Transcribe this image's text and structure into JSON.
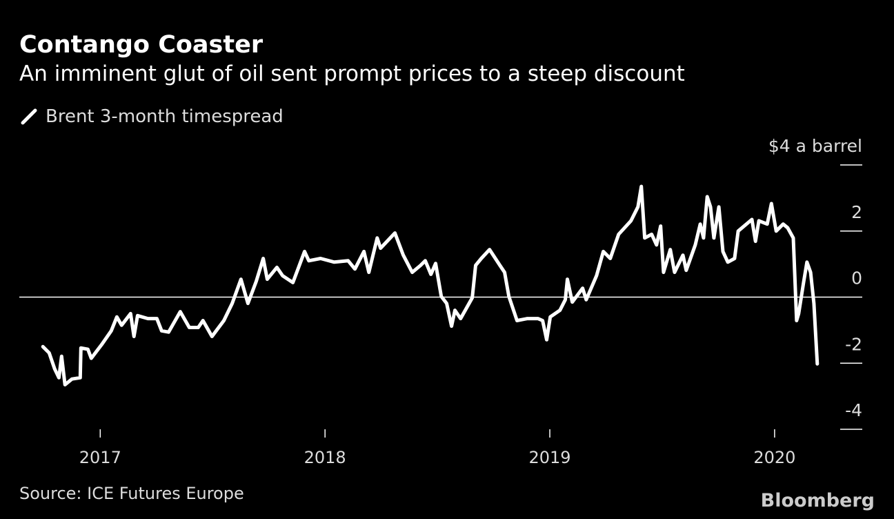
{
  "chart_data": {
    "type": "line",
    "title": "Contango Coaster",
    "subtitle": "An imminent glut of oil sent prompt prices to a steep discount",
    "source": "Source: ICE Futures Europe",
    "logo": "Bloomberg",
    "xlim": [
      2016.64,
      2020.39
    ],
    "xticks": [
      2017,
      2018,
      2019,
      2020
    ],
    "ylim": [
      -4,
      4
    ],
    "yticks": [
      {
        "value": 4,
        "label": "$4 a barrel"
      },
      2,
      0,
      -2,
      -4
    ],
    "x": [
      2016.745,
      2016.773,
      2016.797,
      2016.816,
      2016.828,
      2016.843,
      2016.874,
      2016.911,
      2016.914,
      2016.945,
      2016.96,
      2017.006,
      2017.049,
      2017.074,
      2017.095,
      2017.135,
      2017.15,
      2017.166,
      2017.212,
      2017.252,
      2017.273,
      2017.304,
      2017.356,
      2017.396,
      2017.436,
      2017.457,
      2017.497,
      2017.55,
      2017.587,
      2017.626,
      2017.657,
      2017.694,
      2017.725,
      2017.743,
      2017.786,
      2017.811,
      2017.857,
      2017.909,
      2017.928,
      2017.98,
      2018.041,
      2018.103,
      2018.133,
      2018.173,
      2018.195,
      2018.232,
      2018.247,
      2018.311,
      2018.348,
      2018.388,
      2018.425,
      2018.446,
      2018.471,
      2018.492,
      2018.517,
      2018.541,
      2018.563,
      2018.578,
      2018.603,
      2018.655,
      2018.67,
      2018.695,
      2018.732,
      2018.778,
      2018.799,
      2018.818,
      2018.854,
      2018.9,
      2018.947,
      2018.968,
      2018.986,
      2019.002,
      2019.045,
      2019.069,
      2019.078,
      2019.1,
      2019.146,
      2019.162,
      2019.208,
      2019.238,
      2019.269,
      2019.306,
      2019.361,
      2019.392,
      2019.407,
      2019.422,
      2019.453,
      2019.475,
      2019.493,
      2019.506,
      2019.536,
      2019.555,
      2019.592,
      2019.607,
      2019.647,
      2019.669,
      2019.684,
      2019.7,
      2019.715,
      2019.73,
      2019.752,
      2019.77,
      2019.792,
      2019.822,
      2019.838,
      2019.899,
      2019.915,
      2019.93,
      2019.967,
      2019.986,
      2020.007,
      2020.038,
      2020.058,
      2020.083,
      2020.098,
      2020.107,
      2020.129,
      2020.144,
      2020.16,
      2020.175,
      2020.19
    ],
    "series": [
      {
        "name": "Brent 3-month timespread",
        "color": "#ffffff",
        "values": [
          -1.5,
          -1.69,
          -2.17,
          -2.44,
          -1.79,
          -2.65,
          -2.48,
          -2.44,
          -1.54,
          -1.58,
          -1.85,
          -1.44,
          -1.02,
          -0.6,
          -0.85,
          -0.5,
          -1.19,
          -0.56,
          -0.65,
          -0.65,
          -1.02,
          -1.06,
          -0.44,
          -0.92,
          -0.92,
          -0.71,
          -1.19,
          -0.71,
          -0.19,
          0.54,
          -0.19,
          0.48,
          1.17,
          0.54,
          0.9,
          0.65,
          0.44,
          1.38,
          1.1,
          1.17,
          1.06,
          1.1,
          0.85,
          1.38,
          0.75,
          1.79,
          1.48,
          1.94,
          1.27,
          0.75,
          0.96,
          1.1,
          0.69,
          1.02,
          0.02,
          -0.19,
          -0.88,
          -0.4,
          -0.65,
          -0.02,
          0.96,
          1.17,
          1.44,
          0.96,
          0.75,
          0.02,
          -0.71,
          -0.65,
          -0.65,
          -0.71,
          -1.29,
          -0.6,
          -0.4,
          -0.08,
          0.54,
          -0.15,
          0.27,
          -0.08,
          0.65,
          1.38,
          1.17,
          1.9,
          2.31,
          2.73,
          3.35,
          1.79,
          1.9,
          1.58,
          2.15,
          0.75,
          1.44,
          0.75,
          1.27,
          0.81,
          1.58,
          2.21,
          1.79,
          3.04,
          2.73,
          1.79,
          2.73,
          1.38,
          1.06,
          1.17,
          2.0,
          2.35,
          1.69,
          2.31,
          2.21,
          2.83,
          2.0,
          2.21,
          2.1,
          1.79,
          -0.71,
          -0.5,
          0.44,
          1.06,
          0.75,
          -0.19,
          -2.02
        ]
      }
    ]
  }
}
